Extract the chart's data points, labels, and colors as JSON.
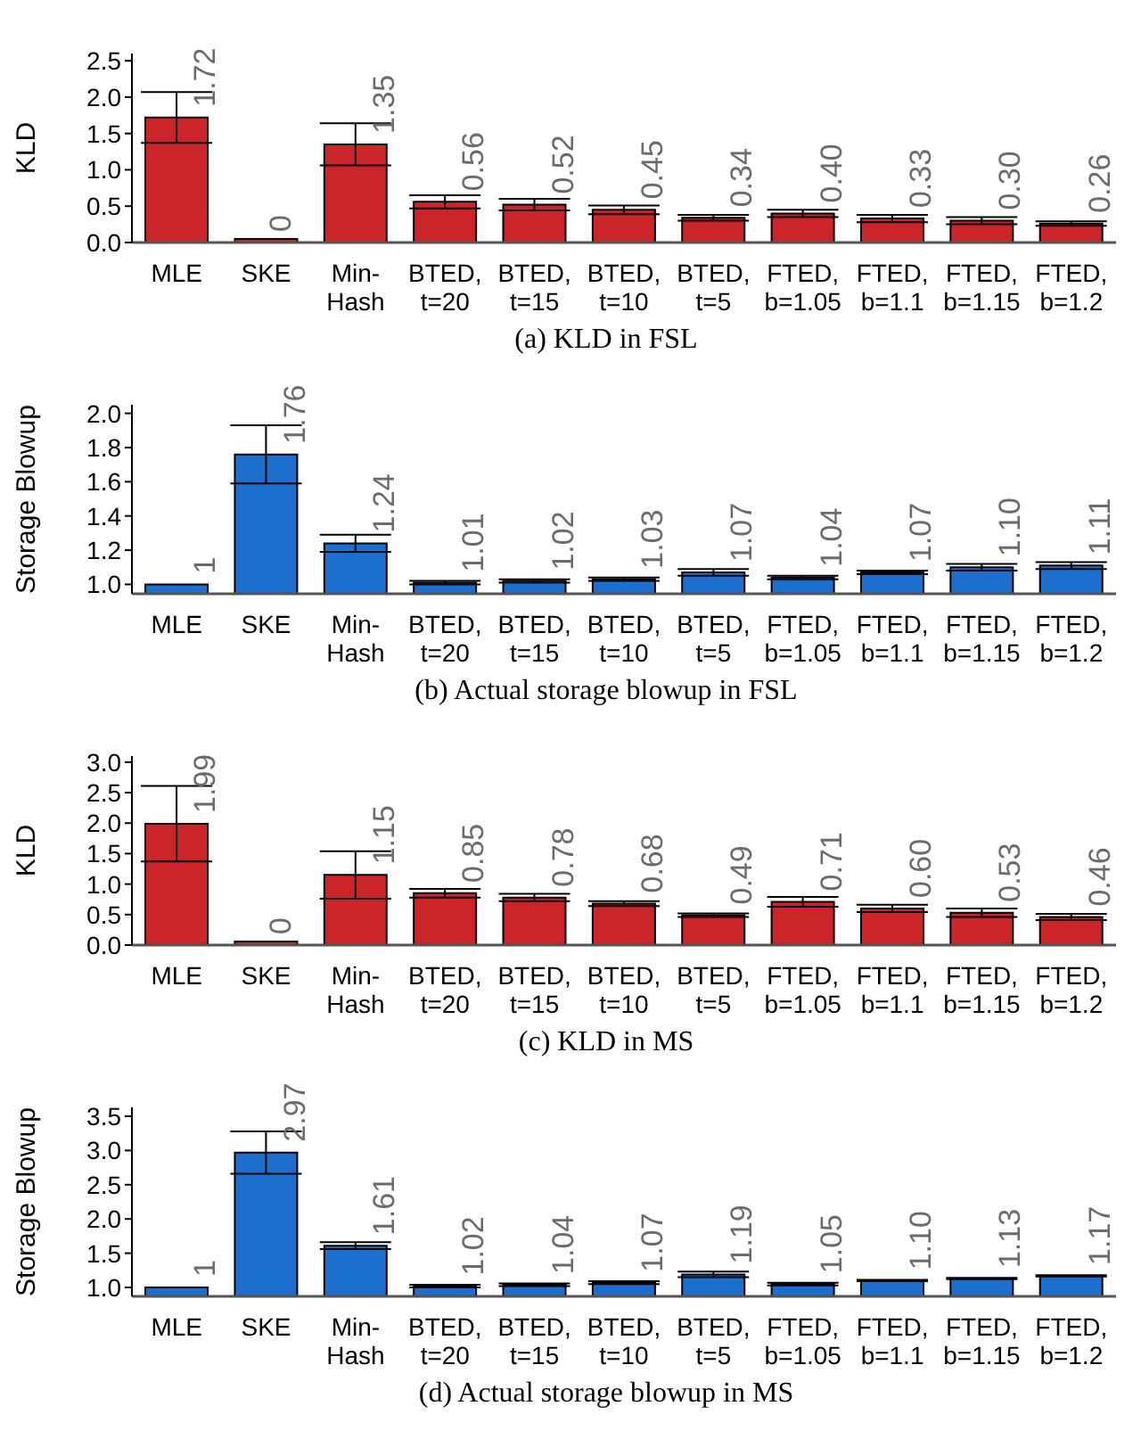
{
  "chart_data": [
    {
      "type": "bar",
      "title": "(a) KLD in FSL",
      "ylabel": "KLD",
      "categories": [
        "MLE",
        "SKE",
        "Min-Hash",
        "BTED, t=20",
        "BTED, t=15",
        "BTED, t=10",
        "BTED, t=5",
        "FTED, b=1.05",
        "FTED, b=1.1",
        "FTED, b=1.15",
        "FTED, b=1.2"
      ],
      "values": [
        1.72,
        0,
        1.35,
        0.56,
        0.52,
        0.45,
        0.34,
        0.4,
        0.33,
        0.3,
        0.26
      ],
      "errors": [
        0.35,
        null,
        0.29,
        0.09,
        0.08,
        0.06,
        0.04,
        0.05,
        0.05,
        0.05,
        0.03
      ],
      "value_labels": [
        "1.72",
        "0",
        "1.35",
        "0.56",
        "0.52",
        "0.45",
        "0.34",
        "0.40",
        "0.33",
        "0.30",
        "0.26"
      ],
      "color": "#cc2529",
      "ylim": [
        0,
        2.6
      ],
      "yticks": [
        {
          "value": 0,
          "label": "0.0"
        },
        {
          "value": 0.5,
          "label": "0.5"
        },
        {
          "value": 1,
          "label": "1.0"
        },
        {
          "value": 1.5,
          "label": "1.5"
        },
        {
          "value": 2,
          "label": "2.0"
        },
        {
          "value": 2.5,
          "label": "2.5"
        }
      ]
    },
    {
      "type": "bar",
      "title": "(b) Actual storage blowup in FSL",
      "ylabel": "Storage Blowup",
      "categories": [
        "MLE",
        "SKE",
        "Min-Hash",
        "BTED, t=20",
        "BTED, t=15",
        "BTED, t=10",
        "BTED, t=5",
        "FTED, b=1.05",
        "FTED, b=1.1",
        "FTED, b=1.15",
        "FTED, b=1.2"
      ],
      "values": [
        1,
        1.76,
        1.24,
        1.01,
        1.02,
        1.03,
        1.07,
        1.04,
        1.07,
        1.1,
        1.11
      ],
      "errors": [
        null,
        0.17,
        0.05,
        0.01,
        0.01,
        0.01,
        0.02,
        0.01,
        0.01,
        0.02,
        0.02
      ],
      "value_labels": [
        "1",
        "1.76",
        "1.24",
        "1.01",
        "1.02",
        "1.03",
        "1.07",
        "1.04",
        "1.07",
        "1.10",
        "1.11"
      ],
      "color": "#1c6fcc",
      "ylim": [
        0.945,
        2.05
      ],
      "yticks": [
        {
          "value": 1,
          "label": "1.0"
        },
        {
          "value": 1.2,
          "label": "1.2"
        },
        {
          "value": 1.4,
          "label": "1.4"
        },
        {
          "value": 1.6,
          "label": "1.6"
        },
        {
          "value": 1.8,
          "label": "1.8"
        },
        {
          "value": 2,
          "label": "2.0"
        }
      ]
    },
    {
      "type": "bar",
      "title": "(c) KLD in MS",
      "ylabel": "KLD",
      "categories": [
        "MLE",
        "SKE",
        "Min-Hash",
        "BTED, t=20",
        "BTED, t=15",
        "BTED, t=10",
        "BTED, t=5",
        "FTED, b=1.05",
        "FTED, b=1.1",
        "FTED, b=1.15",
        "FTED, b=1.2"
      ],
      "values": [
        1.99,
        0,
        1.15,
        0.85,
        0.78,
        0.68,
        0.49,
        0.71,
        0.6,
        0.53,
        0.46
      ],
      "errors": [
        0.62,
        null,
        0.39,
        0.07,
        0.06,
        0.04,
        0.03,
        0.08,
        0.06,
        0.07,
        0.05
      ],
      "value_labels": [
        "1.99",
        "0",
        "1.15",
        "0.85",
        "0.78",
        "0.68",
        "0.49",
        "0.71",
        "0.60",
        "0.53",
        "0.46"
      ],
      "color": "#cc2529",
      "ylim": [
        0,
        3.1
      ],
      "yticks": [
        {
          "value": 0,
          "label": "0.0"
        },
        {
          "value": 0.5,
          "label": "0.5"
        },
        {
          "value": 1,
          "label": "1.0"
        },
        {
          "value": 1.5,
          "label": "1.5"
        },
        {
          "value": 2,
          "label": "2.0"
        },
        {
          "value": 2.5,
          "label": "2.5"
        },
        {
          "value": 3,
          "label": "3.0"
        }
      ]
    },
    {
      "type": "bar",
      "title": "(d) Actual storage blowup in MS",
      "ylabel": "Storage Blowup",
      "categories": [
        "MLE",
        "SKE",
        "Min-Hash",
        "BTED, t=20",
        "BTED, t=15",
        "BTED, t=10",
        "BTED, t=5",
        "FTED, b=1.05",
        "FTED, b=1.1",
        "FTED, b=1.15",
        "FTED, b=1.2"
      ],
      "values": [
        1,
        2.97,
        1.61,
        1.02,
        1.04,
        1.07,
        1.19,
        1.05,
        1.1,
        1.13,
        1.17
      ],
      "errors": [
        null,
        0.31,
        0.05,
        0.02,
        0.02,
        0.02,
        0.04,
        0.02,
        0.01,
        0.01,
        0.01
      ],
      "value_labels": [
        "1",
        "2.97",
        "1.61",
        "1.02",
        "1.04",
        "1.07",
        "1.19",
        "1.05",
        "1.10",
        "1.13",
        "1.17"
      ],
      "color": "#1c6fcc",
      "ylim": [
        0.87,
        3.63
      ],
      "yticks": [
        {
          "value": 1,
          "label": "1.0"
        },
        {
          "value": 1.5,
          "label": "1.5"
        },
        {
          "value": 2,
          "label": "2.0"
        },
        {
          "value": 2.5,
          "label": "2.5"
        },
        {
          "value": 3,
          "label": "3.0"
        },
        {
          "value": 3.5,
          "label": "3.5"
        }
      ]
    }
  ]
}
